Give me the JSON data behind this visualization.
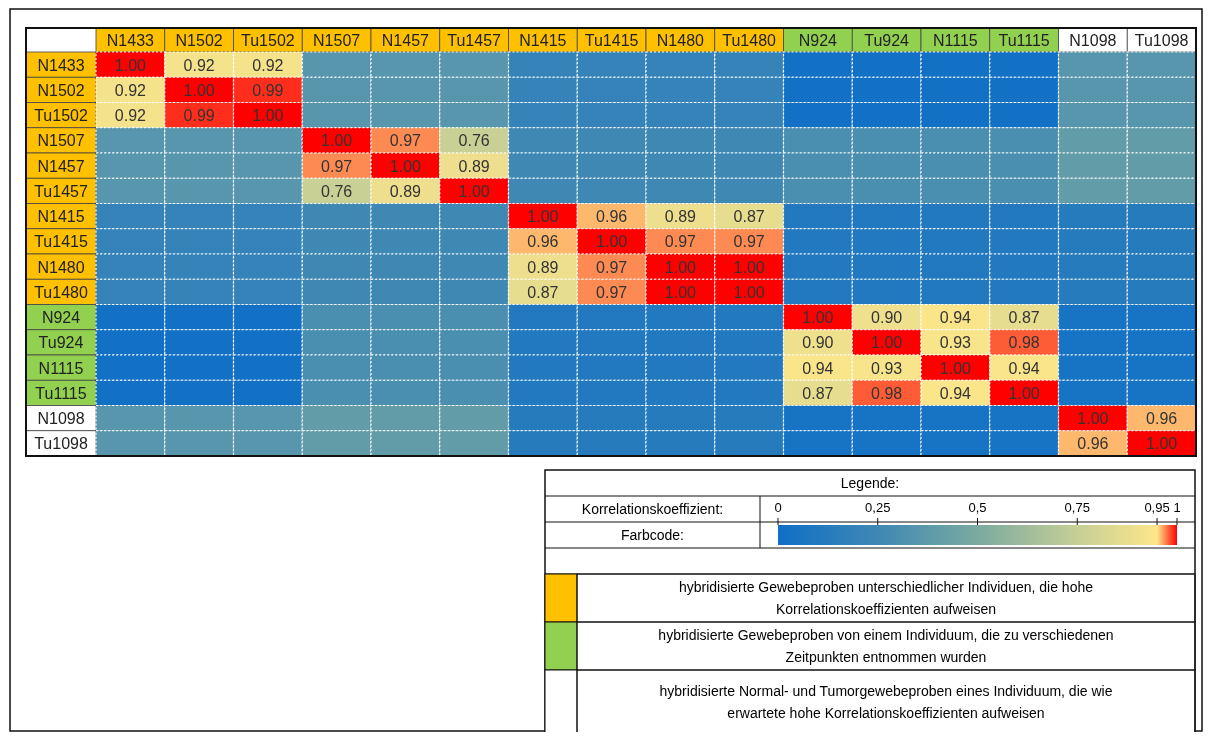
{
  "chart_data": {
    "type": "heatmap",
    "categories": [
      "N1433",
      "N1502",
      "Tu1502",
      "N1507",
      "N1457",
      "Tu1457",
      "N1415",
      "Tu1415",
      "N1480",
      "Tu1480",
      "N924",
      "Tu924",
      "N1115",
      "Tu1115",
      "N1098",
      "Tu1098"
    ],
    "y_categories": [
      "N1433",
      "N1502",
      "Tu1502",
      "N1507",
      "N1457",
      "Tu1457",
      "N1415",
      "Tu1415",
      "N1480",
      "Tu1480",
      "N924",
      "Tu924",
      "N1115",
      "Tu1115",
      "N1098",
      "Tu1098"
    ],
    "colors": [
      "#ffc000",
      "#ffc000",
      "#ffc000",
      "#ffc000",
      "#ffc000",
      "#ffc000",
      "#ffc000",
      "#ffc000",
      "#ffc000",
      "#ffc000",
      "#92d050",
      "#92d050",
      "#92d050",
      "#92d050",
      "#ffffff",
      "#ffffff"
    ],
    "cells": [
      [
        1,
        0.92,
        0.92,
        0.35,
        0.35,
        0.35,
        0.2,
        0.2,
        0.2,
        0.2,
        0.02,
        0.02,
        0.02,
        0.02,
        0.35,
        0.35
      ],
      [
        0.92,
        1,
        0.99,
        0.35,
        0.35,
        0.35,
        0.2,
        0.2,
        0.2,
        0.2,
        0.02,
        0.02,
        0.02,
        0.02,
        0.35,
        0.35
      ],
      [
        0.92,
        0.99,
        1,
        0.35,
        0.35,
        0.35,
        0.2,
        0.2,
        0.2,
        0.2,
        0.02,
        0.02,
        0.02,
        0.02,
        0.35,
        0.35
      ],
      [
        0.35,
        0.35,
        0.35,
        1,
        0.97,
        0.76,
        0.25,
        0.25,
        0.25,
        0.25,
        0.3,
        0.3,
        0.3,
        0.3,
        0.4,
        0.4
      ],
      [
        0.35,
        0.35,
        0.35,
        0.97,
        1,
        0.89,
        0.25,
        0.25,
        0.25,
        0.25,
        0.3,
        0.3,
        0.3,
        0.3,
        0.4,
        0.4
      ],
      [
        0.35,
        0.35,
        0.35,
        0.76,
        0.89,
        1,
        0.25,
        0.25,
        0.25,
        0.25,
        0.3,
        0.3,
        0.3,
        0.3,
        0.4,
        0.4
      ],
      [
        0.2,
        0.2,
        0.2,
        0.25,
        0.25,
        0.25,
        1,
        0.96,
        0.89,
        0.87,
        0.1,
        0.1,
        0.1,
        0.1,
        0.12,
        0.12
      ],
      [
        0.2,
        0.2,
        0.2,
        0.25,
        0.25,
        0.25,
        0.96,
        1,
        0.97,
        0.97,
        0.1,
        0.1,
        0.1,
        0.1,
        0.12,
        0.12
      ],
      [
        0.2,
        0.2,
        0.2,
        0.25,
        0.25,
        0.25,
        0.89,
        0.97,
        1,
        1,
        0.1,
        0.1,
        0.1,
        0.1,
        0.12,
        0.12
      ],
      [
        0.2,
        0.2,
        0.2,
        0.25,
        0.25,
        0.25,
        0.87,
        0.97,
        1,
        1,
        0.1,
        0.1,
        0.1,
        0.1,
        0.12,
        0.12
      ],
      [
        0.02,
        0.02,
        0.02,
        0.3,
        0.3,
        0.3,
        0.1,
        0.1,
        0.1,
        0.1,
        1,
        0.9,
        0.94,
        0.87,
        0.04,
        0.04
      ],
      [
        0.02,
        0.02,
        0.02,
        0.3,
        0.3,
        0.3,
        0.1,
        0.1,
        0.1,
        0.1,
        0.9,
        1,
        0.93,
        0.98,
        0.04,
        0.04
      ],
      [
        0.02,
        0.02,
        0.02,
        0.3,
        0.3,
        0.3,
        0.1,
        0.1,
        0.1,
        0.1,
        0.94,
        0.93,
        1,
        0.94,
        0.04,
        0.04
      ],
      [
        0.02,
        0.02,
        0.02,
        0.3,
        0.3,
        0.3,
        0.1,
        0.1,
        0.1,
        0.1,
        0.87,
        0.98,
        0.94,
        1,
        0.04,
        0.04
      ],
      [
        0.35,
        0.35,
        0.35,
        0.4,
        0.4,
        0.4,
        0.12,
        0.12,
        0.12,
        0.12,
        0.04,
        0.04,
        0.04,
        0.04,
        1,
        0.96
      ],
      [
        0.35,
        0.35,
        0.35,
        0.4,
        0.4,
        0.4,
        0.12,
        0.12,
        0.12,
        0.12,
        0.04,
        0.04,
        0.04,
        0.04,
        0.96,
        1
      ]
    ],
    "cell_labels": [
      [
        "1.00",
        "0.92",
        "0.92",
        null,
        null,
        null,
        null,
        null,
        null,
        null,
        null,
        null,
        null,
        null,
        null,
        null
      ],
      [
        "0.92",
        "1.00",
        "0.99",
        null,
        null,
        null,
        null,
        null,
        null,
        null,
        null,
        null,
        null,
        null,
        null,
        null
      ],
      [
        "0.92",
        "0.99",
        "1.00",
        null,
        null,
        null,
        null,
        null,
        null,
        null,
        null,
        null,
        null,
        null,
        null,
        null
      ],
      [
        null,
        null,
        null,
        "1.00",
        "0.97",
        "0.76",
        null,
        null,
        null,
        null,
        null,
        null,
        null,
        null,
        null,
        null
      ],
      [
        null,
        null,
        null,
        "0.97",
        "1.00",
        "0.89",
        null,
        null,
        null,
        null,
        null,
        null,
        null,
        null,
        null,
        null
      ],
      [
        null,
        null,
        null,
        "0.76",
        "0.89",
        "1.00",
        null,
        null,
        null,
        null,
        null,
        null,
        null,
        null,
        null,
        null
      ],
      [
        null,
        null,
        null,
        null,
        null,
        null,
        "1.00",
        "0.96",
        "0.89",
        "0.87",
        null,
        null,
        null,
        null,
        null,
        null
      ],
      [
        null,
        null,
        null,
        null,
        null,
        null,
        "0.96",
        "1.00",
        "0.97",
        "0.97",
        null,
        null,
        null,
        null,
        null,
        null
      ],
      [
        null,
        null,
        null,
        null,
        null,
        null,
        "0.89",
        "0.97",
        "1.00",
        "1.00",
        null,
        null,
        null,
        null,
        null,
        null
      ],
      [
        null,
        null,
        null,
        null,
        null,
        null,
        "0.87",
        "0.97",
        "1.00",
        "1.00",
        null,
        null,
        null,
        null,
        null,
        null
      ],
      [
        null,
        null,
        null,
        null,
        null,
        null,
        null,
        null,
        null,
        null,
        "1.00",
        "0.90",
        "0.94",
        "0.87",
        null,
        null
      ],
      [
        null,
        null,
        null,
        null,
        null,
        null,
        null,
        null,
        null,
        null,
        "0.90",
        "1.00",
        "0.93",
        "0.98",
        null,
        null
      ],
      [
        null,
        null,
        null,
        null,
        null,
        null,
        null,
        null,
        null,
        null,
        "0.94",
        "0.93",
        "1.00",
        "0.94",
        null,
        null
      ],
      [
        null,
        null,
        null,
        null,
        null,
        null,
        null,
        null,
        null,
        null,
        "0.87",
        "0.98",
        "0.94",
        "1.00",
        null,
        null
      ],
      [
        null,
        null,
        null,
        null,
        null,
        null,
        null,
        null,
        null,
        null,
        null,
        null,
        null,
        null,
        "1.00",
        "0.96"
      ],
      [
        null,
        null,
        null,
        null,
        null,
        null,
        null,
        null,
        null,
        null,
        null,
        null,
        null,
        null,
        "0.96",
        "1.00"
      ]
    ],
    "clim": [
      0,
      1
    ],
    "cticks": [
      {
        "value": 0,
        "label": "0"
      },
      {
        "value": 0.25,
        "label": "0,25"
      },
      {
        "value": 0.5,
        "label": "0,5"
      },
      {
        "value": 0.75,
        "label": "0,75"
      },
      {
        "value": 0.95,
        "label": "0,95"
      },
      {
        "value": 1,
        "label": "1"
      }
    ],
    "clabel": "Korrelationskoeffizient:",
    "legend_title": "Legende:",
    "annotations": [
      "Farbcode:",
      "hybridisierte Gewebeproben unterschiedlicher Individuen, die hohe Korrelationskoeffizienten aufweisen",
      "hybridisierte Gewebeproben von einem Individuum, die zu verschiedenen Zeitpunkten entnommen wurden",
      "hybridisierte Normal- und Tumorgewebeproben eines Individuum, die wie erwartete hohe Korrelationskoeffizienten aufweisen"
    ]
  }
}
